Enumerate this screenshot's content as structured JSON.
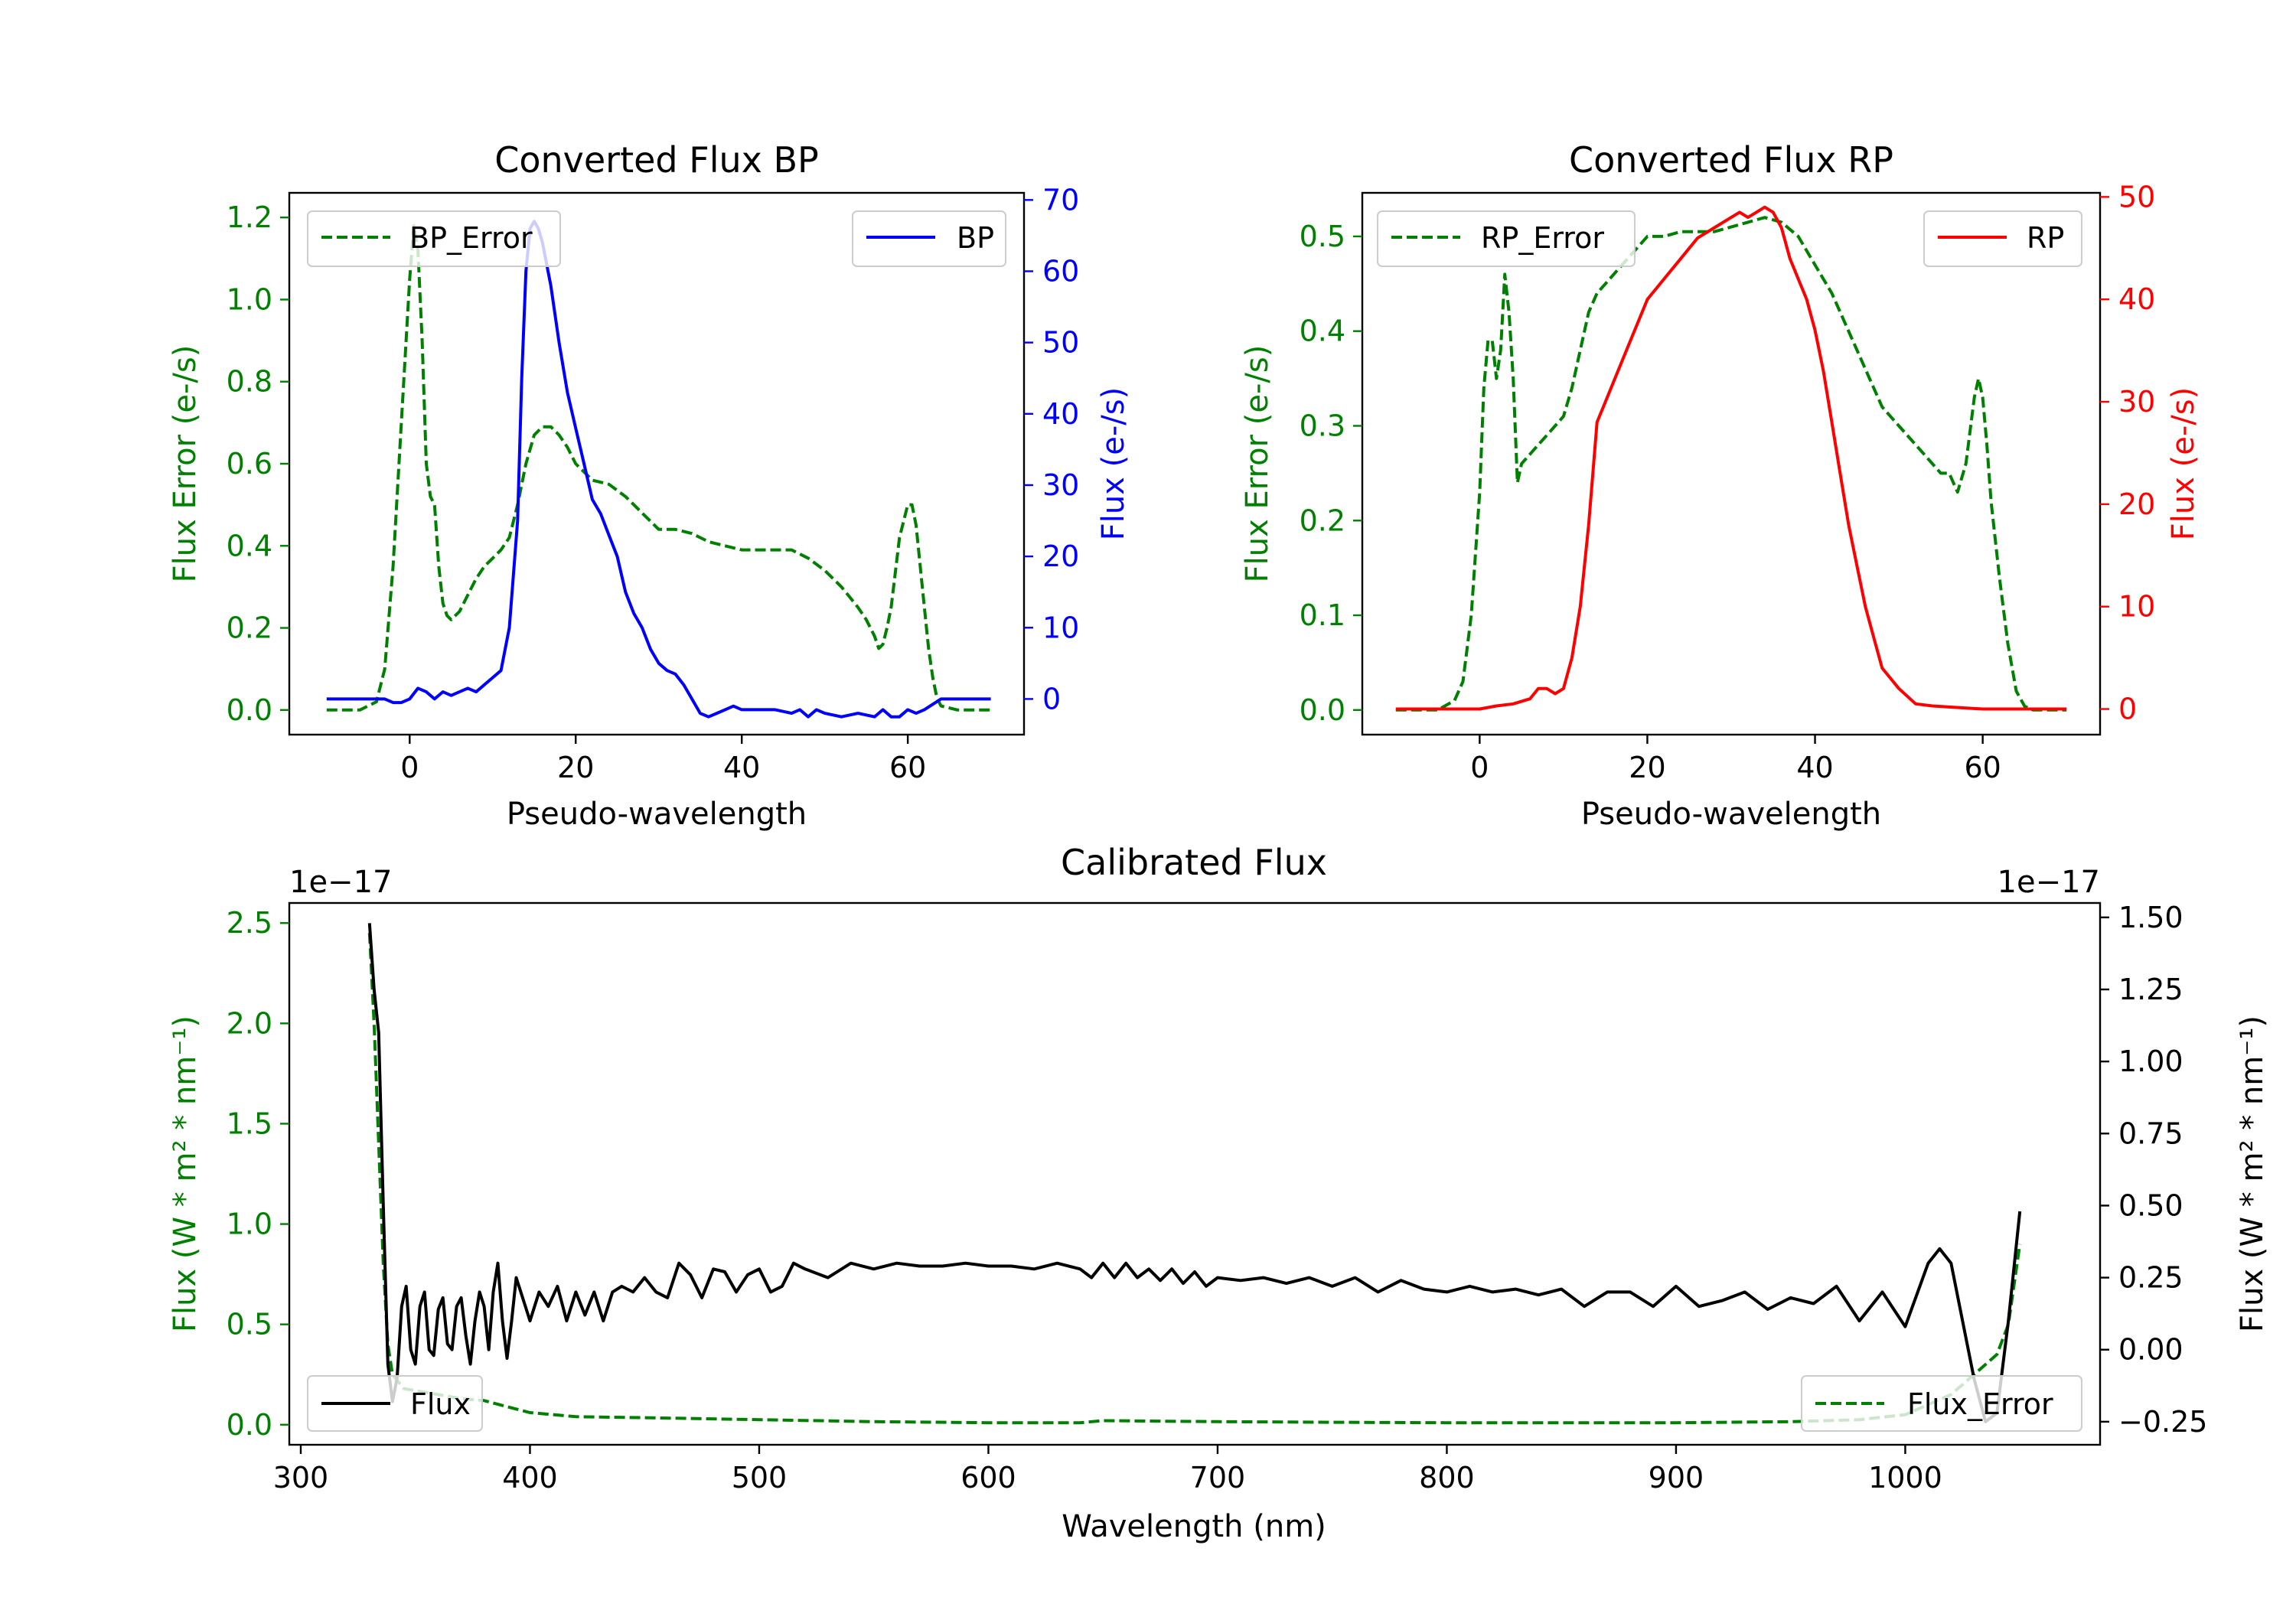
{
  "colors": {
    "error": "#008000",
    "bp": "#0000ff",
    "rp": "#ff0000",
    "flux": "#000000"
  },
  "chart_data": [
    {
      "type": "line",
      "title": "Converted Flux BP",
      "xlabel": "Pseudo-wavelength",
      "xlim": [
        -14.5,
        74
      ],
      "xticks": [
        0,
        20,
        40,
        60
      ],
      "left_axis": {
        "label": "Flux Error (e-/s)",
        "ylim": [
          -0.06,
          1.26
        ],
        "ticks": [
          "0.0",
          "0.2",
          "0.4",
          "0.6",
          "0.8",
          "1.0",
          "1.2"
        ],
        "color": "#008000"
      },
      "right_axis": {
        "label": "Flux (e-/s)",
        "ylim": [
          -5,
          71
        ],
        "ticks": [
          "0",
          "10",
          "20",
          "30",
          "40",
          "50",
          "60",
          "70"
        ],
        "color": "#0000ff"
      },
      "series": [
        {
          "name": "BP_Error",
          "axis": "left",
          "style": "dashed",
          "color": "#008000",
          "x": [
            -10,
            -6,
            -4,
            -3,
            -2,
            -1,
            0,
            0.5,
            1,
            1.5,
            2,
            2.5,
            3,
            3.5,
            4,
            4.5,
            5,
            5.5,
            6,
            7,
            8,
            9,
            10,
            11,
            12,
            13,
            14,
            15,
            16,
            17,
            18,
            19,
            20,
            21,
            22,
            24,
            26,
            27,
            28,
            29,
            30,
            32,
            34,
            36,
            38,
            40,
            42,
            44,
            46,
            47,
            48,
            50,
            52,
            54,
            55,
            56,
            56.5,
            57,
            57.5,
            58,
            59,
            60,
            60.5,
            61,
            61.5,
            62,
            62.5,
            63,
            63.5,
            64,
            66,
            70
          ],
          "y": [
            0,
            0,
            0.02,
            0.1,
            0.35,
            0.7,
            1.05,
            1.18,
            1.12,
            0.9,
            0.6,
            0.52,
            0.5,
            0.35,
            0.26,
            0.23,
            0.22,
            0.23,
            0.24,
            0.28,
            0.32,
            0.35,
            0.37,
            0.39,
            0.42,
            0.5,
            0.6,
            0.67,
            0.69,
            0.69,
            0.67,
            0.64,
            0.6,
            0.58,
            0.56,
            0.55,
            0.52,
            0.5,
            0.48,
            0.46,
            0.44,
            0.44,
            0.43,
            0.41,
            0.4,
            0.39,
            0.39,
            0.39,
            0.39,
            0.38,
            0.37,
            0.34,
            0.3,
            0.25,
            0.22,
            0.18,
            0.15,
            0.16,
            0.2,
            0.25,
            0.42,
            0.5,
            0.5,
            0.45,
            0.35,
            0.25,
            0.15,
            0.08,
            0.03,
            0.01,
            0,
            0
          ]
        },
        {
          "name": "BP",
          "axis": "right",
          "style": "solid",
          "color": "#0000ff",
          "x": [
            -10,
            -5,
            -3,
            -2,
            -1,
            0,
            1,
            2,
            3,
            4,
            5,
            6,
            7,
            8,
            9,
            10,
            11,
            12,
            13,
            13.5,
            14,
            14.5,
            15,
            15.5,
            16,
            17,
            18,
            19,
            20,
            21,
            22,
            23,
            24,
            25,
            26,
            27,
            28,
            29,
            30,
            31,
            32,
            33,
            34,
            35,
            36,
            37,
            38,
            39,
            40,
            42,
            44,
            46,
            47,
            48,
            49,
            50,
            52,
            54,
            56,
            57,
            58,
            59,
            60,
            61,
            62,
            64,
            66,
            70
          ],
          "y": [
            0,
            0,
            0,
            -0.5,
            -0.5,
            0,
            1.5,
            1,
            0,
            1,
            0.5,
            1,
            1.5,
            1,
            2,
            3,
            4,
            10,
            25,
            45,
            60,
            66,
            67,
            66,
            64,
            58,
            50,
            43,
            38,
            33,
            28,
            26,
            23,
            20,
            15,
            12,
            10,
            7,
            5,
            4,
            3.5,
            2,
            0,
            -2,
            -2.5,
            -2,
            -1.5,
            -1,
            -1.5,
            -1.5,
            -1.5,
            -2,
            -1.5,
            -2.5,
            -1.5,
            -2,
            -2.5,
            -2,
            -2.5,
            -1.5,
            -2.5,
            -2.5,
            -1.5,
            -2,
            -1.5,
            0,
            0,
            0
          ]
        }
      ],
      "legends": [
        {
          "position": "upper left",
          "entries": [
            "BP_Error"
          ]
        },
        {
          "position": "upper right",
          "entries": [
            "BP"
          ]
        }
      ]
    },
    {
      "type": "line",
      "title": "Converted Flux RP",
      "xlabel": "Pseudo-wavelength",
      "xlim": [
        -14,
        74
      ],
      "xticks": [
        0,
        20,
        40,
        60
      ],
      "left_axis": {
        "label": "Flux Error (e-/s)",
        "ylim": [
          -0.026,
          0.546
        ],
        "ticks": [
          "0.0",
          "0.1",
          "0.2",
          "0.3",
          "0.4",
          "0.5"
        ],
        "color": "#008000"
      },
      "right_axis": {
        "label": "Flux (e-/s)",
        "ylim": [
          -2.5,
          50.4
        ],
        "ticks": [
          "0",
          "10",
          "20",
          "30",
          "40",
          "50"
        ],
        "color": "#ff0000"
      },
      "series": [
        {
          "name": "RP_Error",
          "axis": "left",
          "style": "dashed",
          "color": "#008000",
          "x": [
            -10,
            -5,
            -4,
            -3,
            -2,
            -1,
            0,
            0.5,
            1,
            1.5,
            2,
            2.5,
            3,
            3.5,
            4,
            4.5,
            5,
            6,
            7,
            8,
            9,
            10,
            11,
            12,
            13,
            14,
            15,
            16,
            17,
            18,
            19,
            20,
            22,
            24,
            26,
            28,
            30,
            32,
            34,
            36,
            38,
            40,
            42,
            44,
            46,
            48,
            50,
            52,
            53,
            54,
            55,
            56,
            57,
            58,
            59,
            59.5,
            60,
            60.5,
            61,
            62,
            63,
            64,
            65,
            66,
            70
          ],
          "y": [
            0,
            0,
            0.005,
            0.01,
            0.03,
            0.1,
            0.23,
            0.34,
            0.39,
            0.39,
            0.35,
            0.38,
            0.46,
            0.42,
            0.35,
            0.24,
            0.26,
            0.27,
            0.28,
            0.29,
            0.3,
            0.31,
            0.34,
            0.38,
            0.42,
            0.44,
            0.45,
            0.46,
            0.47,
            0.48,
            0.49,
            0.5,
            0.5,
            0.505,
            0.505,
            0.505,
            0.51,
            0.515,
            0.52,
            0.515,
            0.5,
            0.47,
            0.44,
            0.4,
            0.36,
            0.32,
            0.3,
            0.28,
            0.27,
            0.26,
            0.25,
            0.25,
            0.23,
            0.26,
            0.33,
            0.35,
            0.33,
            0.28,
            0.22,
            0.14,
            0.07,
            0.02,
            0.004,
            0,
            0
          ]
        },
        {
          "name": "RP",
          "axis": "right",
          "style": "solid",
          "color": "#ff0000",
          "x": [
            -10,
            -5,
            0,
            2,
            4,
            6,
            7,
            8,
            9,
            10,
            11,
            12,
            13,
            14,
            15,
            16,
            18,
            20,
            22,
            24,
            26,
            28,
            30,
            31,
            32,
            33,
            34,
            35,
            36,
            37,
            38,
            39,
            40,
            41,
            42,
            43,
            44,
            45,
            46,
            47,
            48,
            50,
            52,
            54,
            56,
            58,
            60,
            62,
            64,
            66,
            70
          ],
          "y": [
            0,
            0,
            0,
            0.3,
            0.5,
            1,
            2,
            2,
            1.5,
            2,
            5,
            10,
            18,
            28,
            30,
            32,
            36,
            40,
            42,
            44,
            46,
            47,
            48,
            48.5,
            48,
            48.5,
            49,
            48.5,
            47,
            44,
            42,
            40,
            37,
            33,
            28,
            23,
            18,
            14,
            10,
            7,
            4,
            2,
            0.5,
            0.3,
            0.2,
            0.1,
            0,
            0,
            0,
            0,
            0
          ]
        }
      ],
      "legends": [
        {
          "position": "upper left",
          "entries": [
            "RP_Error"
          ]
        },
        {
          "position": "upper right",
          "entries": [
            "RP"
          ]
        }
      ]
    },
    {
      "type": "line",
      "title": "Calibrated Flux",
      "xlabel": "Wavelength (nm)",
      "xlim": [
        295,
        1085
      ],
      "xticks": [
        300,
        400,
        500,
        600,
        700,
        800,
        900,
        1000
      ],
      "left_axis": {
        "label": "Flux (W * m² * nm⁻¹)",
        "offset_label": "1e−17",
        "ylim": [
          -0.1,
          2.6
        ],
        "ticks": [
          "0.0",
          "0.5",
          "1.0",
          "1.5",
          "2.0",
          "2.5"
        ],
        "color": "#008000"
      },
      "right_axis": {
        "label": "Flux (W * m² * nm⁻¹)",
        "offset_label": "1e−17",
        "ylim": [
          -0.33,
          1.55
        ],
        "ticks": [
          "−0.25",
          "0.00",
          "0.25",
          "0.50",
          "0.75",
          "1.00",
          "1.25",
          "1.50"
        ],
        "color": "#000000"
      },
      "series": [
        {
          "name": "Flux_Error",
          "axis": "left",
          "style": "dashed",
          "color": "#008000",
          "x": [
            330,
            332,
            334,
            336,
            338,
            340,
            345,
            350,
            360,
            370,
            380,
            390,
            400,
            420,
            450,
            500,
            550,
            600,
            640,
            650,
            700,
            750,
            800,
            850,
            900,
            950,
            980,
            1000,
            1020,
            1030,
            1040,
            1045,
            1050
          ],
          "y": [
            2.45,
            2.0,
            1.4,
            0.8,
            0.4,
            0.25,
            0.18,
            0.17,
            0.15,
            0.13,
            0.12,
            0.09,
            0.06,
            0.04,
            0.035,
            0.025,
            0.015,
            0.01,
            0.01,
            0.02,
            0.015,
            0.012,
            0.01,
            0.01,
            0.01,
            0.015,
            0.025,
            0.05,
            0.15,
            0.25,
            0.35,
            0.5,
            0.9
          ]
        },
        {
          "name": "Flux",
          "axis": "right",
          "style": "solid",
          "color": "#000000",
          "x": [
            330,
            332,
            334,
            336,
            338,
            340,
            342,
            344,
            346,
            348,
            350,
            352,
            354,
            356,
            358,
            360,
            362,
            364,
            366,
            368,
            370,
            372,
            374,
            376,
            378,
            380,
            382,
            384,
            386,
            388,
            390,
            392,
            394,
            396,
            398,
            400,
            404,
            408,
            412,
            416,
            420,
            424,
            428,
            432,
            436,
            440,
            445,
            450,
            455,
            460,
            465,
            470,
            475,
            480,
            485,
            490,
            495,
            500,
            505,
            510,
            515,
            520,
            530,
            540,
            550,
            560,
            570,
            580,
            590,
            600,
            610,
            620,
            630,
            640,
            645,
            650,
            655,
            660,
            665,
            670,
            675,
            680,
            685,
            690,
            695,
            700,
            710,
            720,
            730,
            740,
            750,
            760,
            770,
            780,
            790,
            800,
            810,
            820,
            830,
            840,
            850,
            860,
            870,
            880,
            890,
            900,
            910,
            920,
            930,
            940,
            950,
            960,
            970,
            980,
            990,
            1000,
            1010,
            1015,
            1020,
            1025,
            1030,
            1035,
            1040,
            1045,
            1050
          ],
          "y": [
            1.48,
            1.25,
            1.1,
            0.5,
            -0.05,
            -0.18,
            -0.1,
            0.15,
            0.22,
            0.0,
            -0.05,
            0.15,
            0.2,
            0.0,
            -0.02,
            0.14,
            0.18,
            0.02,
            0.0,
            0.15,
            0.18,
            0.05,
            -0.05,
            0.1,
            0.2,
            0.15,
            0.0,
            0.2,
            0.3,
            0.1,
            -0.03,
            0.1,
            0.25,
            0.2,
            0.15,
            0.1,
            0.2,
            0.15,
            0.22,
            0.1,
            0.2,
            0.12,
            0.2,
            0.1,
            0.2,
            0.22,
            0.2,
            0.25,
            0.2,
            0.18,
            0.3,
            0.26,
            0.18,
            0.28,
            0.27,
            0.2,
            0.26,
            0.28,
            0.2,
            0.22,
            0.3,
            0.28,
            0.25,
            0.3,
            0.28,
            0.3,
            0.29,
            0.29,
            0.3,
            0.29,
            0.29,
            0.28,
            0.3,
            0.28,
            0.25,
            0.3,
            0.25,
            0.3,
            0.25,
            0.28,
            0.24,
            0.28,
            0.23,
            0.27,
            0.22,
            0.25,
            0.24,
            0.25,
            0.23,
            0.25,
            0.22,
            0.25,
            0.2,
            0.24,
            0.21,
            0.2,
            0.22,
            0.2,
            0.21,
            0.19,
            0.21,
            0.15,
            0.2,
            0.2,
            0.15,
            0.22,
            0.15,
            0.17,
            0.2,
            0.14,
            0.18,
            0.16,
            0.22,
            0.1,
            0.2,
            0.08,
            0.3,
            0.35,
            0.3,
            0.1,
            -0.1,
            -0.25,
            -0.22,
            0.1,
            0.48
          ]
        }
      ],
      "legends": [
        {
          "position": "lower left",
          "entries": [
            "Flux"
          ]
        },
        {
          "position": "lower right",
          "entries": [
            "Flux_Error"
          ]
        }
      ]
    }
  ]
}
